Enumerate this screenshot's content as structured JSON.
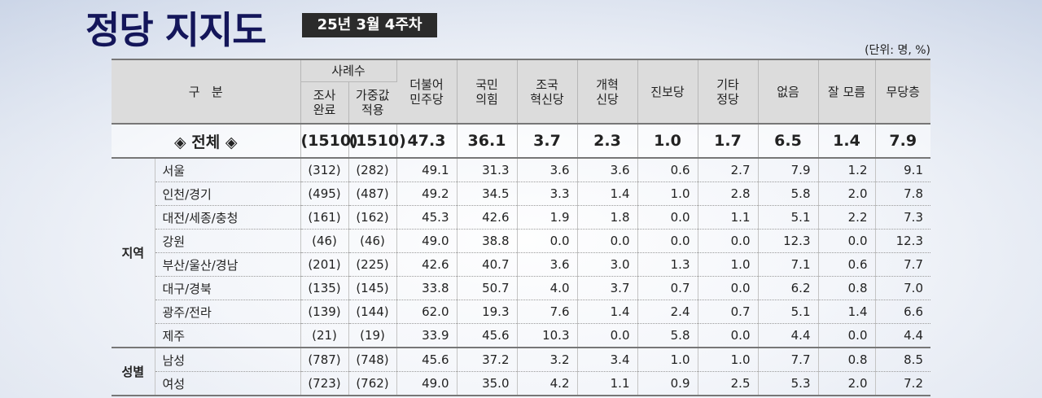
{
  "title": "정당 지지도",
  "week_badge": "25년 3월 4주차",
  "unit": "(단위: 명, %)",
  "header": {
    "category": "구   분",
    "cases": "사례수",
    "cases_survey": "조사\n완료",
    "cases_weighted": "가중값\n적용",
    "parties": [
      "더불어\n민주당",
      "국민\n의힘",
      "조국\n혁신당",
      "개혁\n신당",
      "진보당",
      "기타\n정당",
      "없음",
      "잘 모름",
      "무당층"
    ]
  },
  "total": {
    "label": "◈ 전체 ◈",
    "survey": "(1510)",
    "weighted": "(1510)",
    "values": [
      "47.3",
      "36.1",
      "3.7",
      "2.3",
      "1.0",
      "1.7",
      "6.5",
      "1.4",
      "7.9"
    ]
  },
  "groups": [
    {
      "name": "지역",
      "rows": [
        {
          "label": "서울",
          "survey": "(312)",
          "weighted": "(282)",
          "values": [
            "49.1",
            "31.3",
            "3.6",
            "3.6",
            "0.6",
            "2.7",
            "7.9",
            "1.2",
            "9.1"
          ]
        },
        {
          "label": "인천/경기",
          "survey": "(495)",
          "weighted": "(487)",
          "values": [
            "49.2",
            "34.5",
            "3.3",
            "1.4",
            "1.0",
            "2.8",
            "5.8",
            "2.0",
            "7.8"
          ]
        },
        {
          "label": "대전/세종/충청",
          "survey": "(161)",
          "weighted": "(162)",
          "values": [
            "45.3",
            "42.6",
            "1.9",
            "1.8",
            "0.0",
            "1.1",
            "5.1",
            "2.2",
            "7.3"
          ]
        },
        {
          "label": "강원",
          "survey": "(46)",
          "weighted": "(46)",
          "values": [
            "49.0",
            "38.8",
            "0.0",
            "0.0",
            "0.0",
            "0.0",
            "12.3",
            "0.0",
            "12.3"
          ]
        },
        {
          "label": "부산/울산/경남",
          "survey": "(201)",
          "weighted": "(225)",
          "values": [
            "42.6",
            "40.7",
            "3.6",
            "3.0",
            "1.3",
            "1.0",
            "7.1",
            "0.6",
            "7.7"
          ]
        },
        {
          "label": "대구/경북",
          "survey": "(135)",
          "weighted": "(145)",
          "values": [
            "33.8",
            "50.7",
            "4.0",
            "3.7",
            "0.7",
            "0.0",
            "6.2",
            "0.8",
            "7.0"
          ]
        },
        {
          "label": "광주/전라",
          "survey": "(139)",
          "weighted": "(144)",
          "values": [
            "62.0",
            "19.3",
            "7.6",
            "1.4",
            "2.4",
            "0.7",
            "5.1",
            "1.4",
            "6.6"
          ]
        },
        {
          "label": "제주",
          "survey": "(21)",
          "weighted": "(19)",
          "values": [
            "33.9",
            "45.6",
            "10.3",
            "0.0",
            "5.8",
            "0.0",
            "4.4",
            "0.0",
            "4.4"
          ]
        }
      ]
    },
    {
      "name": "성별",
      "rows": [
        {
          "label": "남성",
          "survey": "(787)",
          "weighted": "(748)",
          "values": [
            "45.6",
            "37.2",
            "3.2",
            "3.4",
            "1.0",
            "1.0",
            "7.7",
            "0.8",
            "8.5"
          ]
        },
        {
          "label": "여성",
          "survey": "(723)",
          "weighted": "(762)",
          "values": [
            "49.0",
            "35.0",
            "4.2",
            "1.1",
            "0.9",
            "2.5",
            "5.3",
            "2.0",
            "7.2"
          ]
        }
      ]
    }
  ]
}
